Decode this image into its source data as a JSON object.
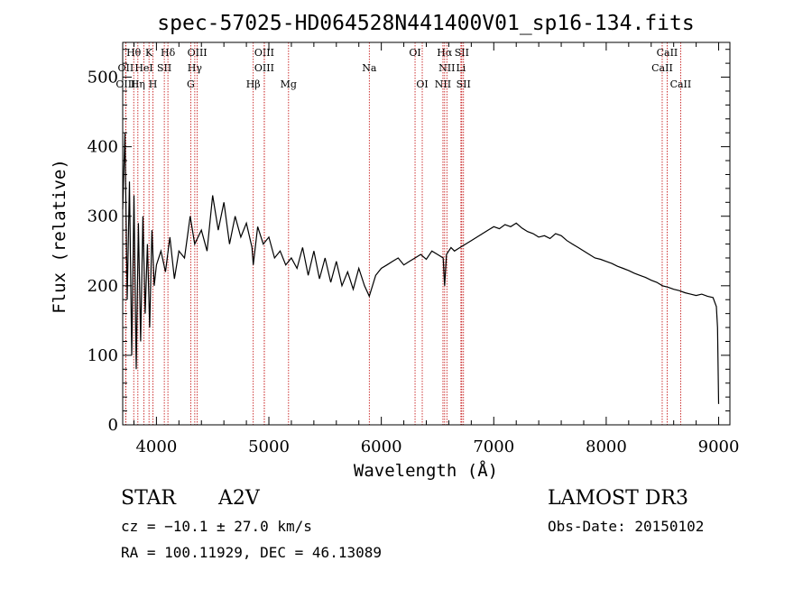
{
  "chart_data": {
    "type": "line",
    "title": "spec-57025-HD064528N441400V01_sp16-134.fits",
    "xlabel": "Wavelength (Å)",
    "ylabel": "Flux (relative)",
    "xlim": [
      3700,
      9100
    ],
    "ylim": [
      0,
      550
    ],
    "xticks": [
      4000,
      5000,
      6000,
      7000,
      8000,
      9000
    ],
    "yticks": [
      0,
      100,
      200,
      300,
      400,
      500
    ],
    "x_minor_step": 200,
    "y_minor_step": 20,
    "line_color": "#000000",
    "marker_color": "#c00000",
    "series": [
      {
        "name": "flux",
        "x": [
          3700,
          3720,
          3740,
          3760,
          3780,
          3800,
          3820,
          3840,
          3860,
          3880,
          3900,
          3920,
          3940,
          3960,
          3980,
          4000,
          4040,
          4080,
          4120,
          4160,
          4200,
          4250,
          4300,
          4340,
          4400,
          4450,
          4500,
          4550,
          4600,
          4650,
          4700,
          4750,
          4800,
          4850,
          4861,
          4900,
          4950,
          5000,
          5050,
          5100,
          5150,
          5200,
          5250,
          5300,
          5350,
          5400,
          5450,
          5500,
          5550,
          5600,
          5650,
          5700,
          5750,
          5800,
          5850,
          5893,
          5950,
          6000,
          6050,
          6100,
          6150,
          6200,
          6250,
          6300,
          6350,
          6400,
          6450,
          6500,
          6550,
          6563,
          6580,
          6620,
          6650,
          6700,
          6750,
          6800,
          6850,
          6900,
          6950,
          7000,
          7050,
          7100,
          7150,
          7200,
          7250,
          7300,
          7350,
          7400,
          7450,
          7500,
          7550,
          7600,
          7650,
          7700,
          7750,
          7800,
          7850,
          7900,
          7950,
          8000,
          8050,
          8100,
          8150,
          8200,
          8250,
          8300,
          8350,
          8400,
          8450,
          8500,
          8550,
          8600,
          8650,
          8700,
          8750,
          8800,
          8850,
          8900,
          8950,
          8980,
          8990,
          9000
        ],
        "values": [
          310,
          420,
          180,
          350,
          100,
          330,
          80,
          290,
          120,
          300,
          160,
          260,
          140,
          280,
          200,
          230,
          250,
          220,
          270,
          210,
          250,
          240,
          300,
          260,
          280,
          250,
          330,
          280,
          320,
          260,
          300,
          270,
          290,
          255,
          230,
          285,
          260,
          270,
          240,
          250,
          230,
          240,
          225,
          255,
          215,
          250,
          210,
          240,
          205,
          235,
          200,
          220,
          195,
          225,
          200,
          185,
          215,
          225,
          230,
          235,
          240,
          230,
          235,
          240,
          245,
          238,
          250,
          245,
          240,
          200,
          245,
          255,
          250,
          255,
          260,
          265,
          270,
          275,
          280,
          285,
          282,
          288,
          285,
          290,
          283,
          278,
          275,
          270,
          272,
          268,
          275,
          272,
          265,
          260,
          255,
          250,
          245,
          240,
          238,
          235,
          232,
          228,
          225,
          222,
          218,
          215,
          212,
          208,
          205,
          200,
          198,
          195,
          193,
          190,
          188,
          186,
          188,
          185,
          183,
          170,
          140,
          30
        ]
      }
    ],
    "line_markers": [
      {
        "label": "Hθ",
        "x": 3798,
        "row": 1
      },
      {
        "label": "OII",
        "x": 3727,
        "row": 2
      },
      {
        "label": "OIII",
        "x": 3727,
        "row": 3
      },
      {
        "label": "K",
        "x": 3934,
        "row": 1
      },
      {
        "label": "HeI",
        "x": 3889,
        "row": 2
      },
      {
        "label": "Hη",
        "x": 3835,
        "row": 3
      },
      {
        "label": "H",
        "x": 3969,
        "row": 3
      },
      {
        "label": "Hδ",
        "x": 4102,
        "row": 1
      },
      {
        "label": "SII",
        "x": 4070,
        "row": 2
      },
      {
        "label": "OIII",
        "x": 4363,
        "row": 1
      },
      {
        "label": "Hγ",
        "x": 4341,
        "row": 2
      },
      {
        "label": "G",
        "x": 4305,
        "row": 3
      },
      {
        "label": "OIII",
        "x": 4959,
        "row": 1
      },
      {
        "label": "OIII",
        "x": 4959,
        "row": 2
      },
      {
        "label": "Hβ",
        "x": 4861,
        "row": 3
      },
      {
        "label": "Mg",
        "x": 5175,
        "row": 3
      },
      {
        "label": "Na",
        "x": 5893,
        "row": 2
      },
      {
        "label": "OI",
        "x": 6300,
        "row": 1
      },
      {
        "label": "OI",
        "x": 6364,
        "row": 3
      },
      {
        "label": "Hα",
        "x": 6563,
        "row": 1
      },
      {
        "label": "SII",
        "x": 6716,
        "row": 1
      },
      {
        "label": "NII",
        "x": 6583,
        "row": 2
      },
      {
        "label": "Li",
        "x": 6708,
        "row": 2
      },
      {
        "label": "NII",
        "x": 6548,
        "row": 3
      },
      {
        "label": "SII",
        "x": 6731,
        "row": 3
      },
      {
        "label": "CaII",
        "x": 8542,
        "row": 1
      },
      {
        "label": "CaII",
        "x": 8498,
        "row": 2
      },
      {
        "label": "CaII",
        "x": 8662,
        "row": 3
      }
    ]
  },
  "info": {
    "object_class": "STAR",
    "subclass": "A2V",
    "survey": "LAMOST DR3",
    "redshift": "cz = −10.1 ± 27.0 km/s",
    "obs_date": "Obs-Date: 20150102",
    "coords": "RA = 100.11929, DEC =  46.13089"
  }
}
